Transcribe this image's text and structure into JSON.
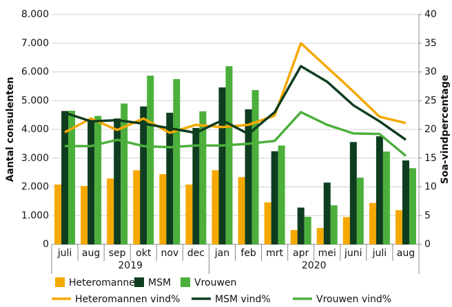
{
  "chart_data": {
    "type": "bar",
    "y_label": "Aantal consulenten",
    "y2_label": "Soa-vindpercentage",
    "categories": [
      "juli",
      "aug",
      "sep",
      "okt",
      "nov",
      "dec",
      "jan",
      "feb",
      "mrt",
      "apr",
      "mei",
      "juni",
      "juli",
      "aug"
    ],
    "groups": [
      {
        "label": "2019",
        "count": 6
      },
      {
        "label": "2020",
        "count": 8
      }
    ],
    "ylim": [
      0,
      8000
    ],
    "yticks": [
      0,
      {
        "value": 1000,
        "label": "1.000"
      },
      {
        "value": 2000,
        "label": "2.000"
      },
      {
        "value": 3000,
        "label": "3.000"
      },
      {
        "value": 4000,
        "label": "4.000"
      },
      {
        "value": 5000,
        "label": "5.000"
      },
      {
        "value": 6000,
        "label": "6.000"
      },
      {
        "value": 7000,
        "label": "7.000"
      },
      {
        "value": 8000,
        "label": "8.000"
      }
    ],
    "y2lim": [
      0,
      40
    ],
    "y2ticks": [
      0,
      5,
      10,
      15,
      20,
      25,
      30,
      35,
      40
    ],
    "grid": true,
    "series": [
      {
        "name": "Heteromannen",
        "type": "bar",
        "color": "#f5a800",
        "values": [
          2080,
          2030,
          2290,
          2580,
          2440,
          2080,
          2580,
          2340,
          1460,
          500,
          570,
          950,
          1440,
          1190
        ]
      },
      {
        "name": "MSM",
        "type": "bar",
        "color": "#0f3d1f",
        "values": [
          4640,
          4360,
          4380,
          4800,
          4580,
          4050,
          5460,
          4700,
          3240,
          1280,
          2150,
          3560,
          3760,
          2920
        ]
      },
      {
        "name": "Vrouwen",
        "type": "bar",
        "color": "#4caf3c",
        "values": [
          4650,
          4470,
          4900,
          5870,
          5750,
          4630,
          6200,
          5370,
          3440,
          960,
          1360,
          2320,
          3230,
          2650
        ]
      },
      {
        "name": "Heteromannen vind%",
        "type": "line",
        "axis": "y2",
        "color": "#f5a800",
        "values": [
          19.5,
          21.9,
          19.9,
          21.9,
          19.4,
          20.8,
          20.4,
          20.8,
          22.4,
          35.0,
          30.8,
          26.6,
          22.2,
          21.1
        ]
      },
      {
        "name": "MSM vind%",
        "type": "line",
        "axis": "y2",
        "color": "#0f3d1f",
        "values": [
          22.9,
          21.4,
          21.6,
          21.0,
          20.2,
          19.4,
          21.6,
          19.2,
          23.0,
          31.0,
          28.3,
          24.2,
          21.4,
          18.2
        ]
      },
      {
        "name": "Vrouwen vind%",
        "type": "line",
        "axis": "y2",
        "color": "#4caf3c",
        "values": [
          17.1,
          17.1,
          18.2,
          17.1,
          16.9,
          17.2,
          17.2,
          17.5,
          18.0,
          23.0,
          20.8,
          19.3,
          19.2,
          15.4
        ]
      }
    ]
  }
}
